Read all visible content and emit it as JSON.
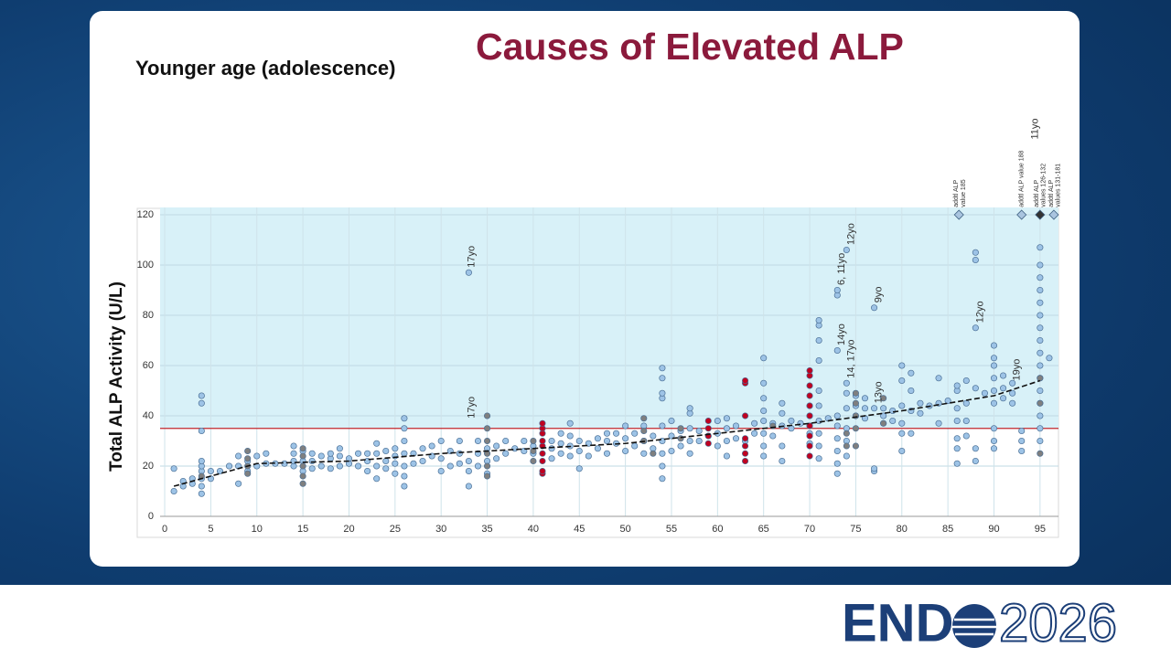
{
  "slide": {
    "title": "Causes of Elevated ALP",
    "subtitle": "Younger age (adolescence)",
    "logo_text": "END",
    "logo_year": "2026"
  },
  "chart_data": {
    "type": "scatter",
    "y_label": "Total ALP Activity (U/L)",
    "xlim": [
      -0.5,
      97
    ],
    "ylim": [
      0,
      120
    ],
    "xticks": [
      0,
      5,
      10,
      15,
      20,
      25,
      30,
      35,
      40,
      45,
      50,
      55,
      60,
      65,
      70,
      75,
      80,
      85,
      90,
      95
    ],
    "yticks": [
      0,
      20,
      40,
      60,
      80,
      100,
      120
    ],
    "grid": true,
    "reference_line": 35,
    "reference_color": "#c0262d",
    "shade_color": "#d8f1f8",
    "series": [
      {
        "color": "#9dc3e6",
        "x": [
          1,
          1,
          2,
          2,
          3,
          3,
          4,
          4,
          4,
          4,
          4,
          4,
          4,
          4,
          4,
          5,
          5,
          6,
          7,
          8,
          8,
          8,
          9,
          9,
          10,
          10,
          11,
          11,
          12,
          13,
          14,
          14,
          14,
          14,
          15,
          15,
          15,
          16,
          16,
          16,
          17,
          17,
          18,
          18,
          18,
          19,
          19,
          19,
          20,
          20,
          21,
          21,
          22,
          22,
          22,
          23,
          23,
          23,
          23,
          24,
          24,
          24,
          25,
          25,
          25,
          25,
          26,
          26,
          26,
          26,
          26,
          26,
          26,
          27,
          27,
          28,
          28,
          29,
          29,
          30,
          30,
          30,
          31,
          31,
          32,
          32,
          32,
          33,
          33,
          33,
          33,
          34,
          34,
          34,
          35,
          35,
          35,
          36,
          36,
          37,
          37,
          38,
          39,
          39,
          40,
          40,
          42,
          42,
          42,
          43,
          43,
          43,
          44,
          44,
          44,
          44,
          45,
          45,
          45,
          46,
          46,
          47,
          47,
          48,
          48,
          48,
          49,
          49,
          50,
          50,
          50,
          51,
          51,
          52,
          52,
          52,
          53,
          53,
          54,
          54,
          54,
          54,
          54,
          54,
          54,
          54,
          54,
          55,
          55,
          55,
          56,
          56,
          57,
          57,
          57,
          57,
          57,
          58,
          58,
          60,
          60,
          60,
          61,
          61,
          61,
          61,
          62,
          62,
          63,
          64,
          64,
          65,
          65,
          65,
          65,
          65,
          65,
          65,
          65,
          66,
          66,
          67,
          67,
          67,
          67,
          67,
          68,
          68,
          69,
          70,
          70,
          70,
          70,
          70,
          71,
          71,
          71,
          71,
          71,
          71,
          71,
          71,
          71,
          71,
          72,
          73,
          73,
          73,
          73,
          73,
          73,
          73,
          73,
          73,
          74,
          74,
          74,
          74,
          74,
          74,
          74,
          75,
          75,
          75,
          76,
          76,
          76,
          77,
          77,
          77,
          77,
          78,
          78,
          78,
          79,
          79,
          80,
          80,
          80,
          80,
          80,
          80,
          81,
          81,
          81,
          81,
          82,
          82,
          83,
          84,
          84,
          84,
          85,
          86,
          86,
          86,
          86,
          86,
          86,
          86,
          87,
          87,
          87,
          87,
          88,
          88,
          88,
          88,
          88,
          88,
          89,
          90,
          90,
          90,
          90,
          90,
          90,
          90,
          90,
          90,
          91,
          91,
          91,
          92,
          92,
          92,
          93,
          93,
          93,
          95,
          95,
          95,
          95,
          95,
          95,
          95,
          95,
          95,
          95,
          95,
          95,
          95,
          95,
          95,
          95,
          96
        ],
        "values": [
          10,
          19,
          12,
          14,
          13,
          15,
          9,
          12,
          15,
          18,
          20,
          22,
          34,
          45,
          48,
          15,
          18,
          18,
          20,
          13,
          20,
          24,
          18,
          22,
          20,
          24,
          21,
          25,
          21,
          21,
          20,
          22,
          25,
          28,
          18,
          22,
          26,
          19,
          22,
          25,
          20,
          24,
          19,
          23,
          25,
          20,
          24,
          27,
          21,
          23,
          20,
          25,
          18,
          22,
          25,
          15,
          20,
          25,
          29,
          19,
          22,
          26,
          17,
          21,
          24,
          27,
          12,
          16,
          20,
          25,
          30,
          35,
          39,
          21,
          25,
          22,
          27,
          24,
          28,
          18,
          23,
          30,
          20,
          26,
          21,
          25,
          30,
          12,
          18,
          22,
          97,
          20,
          25,
          30,
          17,
          22,
          27,
          23,
          28,
          25,
          30,
          27,
          26,
          30,
          25,
          28,
          23,
          27,
          30,
          25,
          29,
          33,
          24,
          28,
          32,
          37,
          19,
          26,
          30,
          24,
          29,
          27,
          31,
          25,
          30,
          33,
          29,
          33,
          26,
          31,
          36,
          28,
          33,
          25,
          30,
          36,
          27,
          32,
          15,
          20,
          25,
          30,
          36,
          47,
          49,
          55,
          59,
          26,
          32,
          38,
          28,
          34,
          25,
          30,
          35,
          41,
          43,
          30,
          34,
          28,
          33,
          38,
          24,
          30,
          35,
          39,
          31,
          36,
          30,
          33,
          37,
          24,
          28,
          33,
          38,
          42,
          47,
          53,
          63,
          32,
          37,
          22,
          28,
          36,
          41,
          45,
          35,
          38,
          37,
          29,
          33,
          36,
          40,
          44,
          23,
          28,
          33,
          38,
          44,
          50,
          62,
          70,
          76,
          78,
          39,
          17,
          21,
          26,
          31,
          36,
          40,
          66,
          88,
          90,
          24,
          30,
          35,
          43,
          49,
          53,
          106,
          40,
          44,
          48,
          39,
          43,
          47,
          18,
          19,
          43,
          83,
          37,
          40,
          43,
          38,
          42,
          26,
          33,
          37,
          44,
          54,
          60,
          33,
          42,
          50,
          57,
          41,
          45,
          44,
          37,
          45,
          55,
          46,
          21,
          27,
          31,
          38,
          43,
          50,
          52,
          32,
          38,
          45,
          54,
          22,
          27,
          51,
          75,
          102,
          105,
          49,
          27,
          30,
          35,
          45,
          50,
          55,
          60,
          63,
          68,
          47,
          51,
          56,
          45,
          49,
          53,
          26,
          30,
          34,
          30,
          35,
          40,
          45,
          50,
          55,
          60,
          65,
          70,
          75,
          80,
          85,
          90,
          95,
          100,
          107,
          63
        ]
      },
      {
        "color": "#7f7f7f",
        "x": [
          4,
          9,
          9,
          9,
          9,
          15,
          15,
          15,
          15,
          15,
          35,
          35,
          35,
          35,
          35,
          35,
          40,
          40,
          40,
          52,
          52,
          52,
          53,
          56,
          56,
          59,
          66,
          74,
          74,
          75,
          75,
          75,
          75,
          75,
          78,
          78,
          95,
          95,
          95
        ],
        "values": [
          16,
          17,
          20,
          23,
          26,
          13,
          16,
          20,
          24,
          27,
          16,
          20,
          25,
          30,
          35,
          40,
          22,
          26,
          30,
          30,
          34,
          39,
          25,
          31,
          35,
          32,
          36,
          28,
          33,
          28,
          35,
          40,
          45,
          49,
          37,
          47,
          25,
          45,
          55
        ]
      },
      {
        "color": "#c00020",
        "x": [
          41,
          41,
          41,
          41,
          41,
          41,
          41,
          41,
          41,
          59,
          59,
          59,
          59,
          63,
          63,
          63,
          63,
          63,
          63,
          63,
          70,
          70,
          70,
          70,
          70,
          70,
          70,
          70,
          70,
          70
        ],
        "values": [
          17,
          18,
          22,
          25,
          28,
          30,
          33,
          35,
          37,
          29,
          32,
          35,
          38,
          22,
          25,
          28,
          31,
          40,
          53,
          54,
          24,
          28,
          32,
          36,
          40,
          44,
          48,
          52,
          56,
          58
        ]
      },
      {
        "color": "#9dc3e6",
        "marker": "diamond",
        "point_colors": [
          "#a9c4df",
          "#a9c4df",
          "#333333",
          "#a9c4df"
        ],
        "x": [
          86.2,
          93,
          95,
          96.5
        ],
        "values": [
          120,
          120,
          120,
          120
        ]
      }
    ],
    "trend": {
      "color": "#111111",
      "x": [
        1,
        5,
        10,
        20,
        30,
        40,
        50,
        60,
        70,
        80,
        90,
        95
      ],
      "values": [
        12,
        16,
        21,
        22,
        25,
        27,
        29,
        33,
        37,
        42,
        48,
        54
      ]
    },
    "annotations": [
      "17yo",
      "17yo",
      "6, 11yo",
      "12yo",
      "14yo",
      "14, 17yo",
      "9yo",
      "13yo",
      "12yo",
      "19yo",
      "11yo",
      [
        "addtl ALP",
        "value 185"
      ],
      "addtl ALP value 188",
      [
        "addtl ALP",
        "values 126-132"
      ],
      [
        "addtl ALP",
        "values 131-181"
      ]
    ]
  }
}
